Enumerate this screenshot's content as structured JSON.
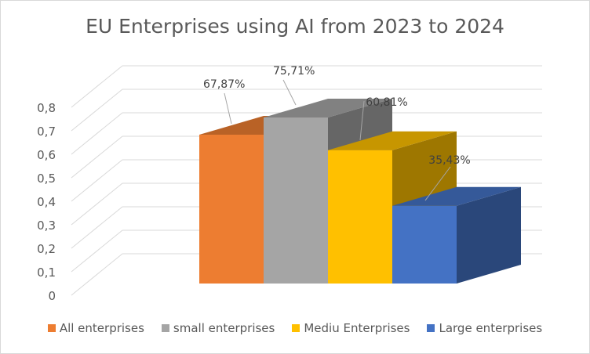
{
  "chart_data": {
    "type": "bar",
    "title": "EU Enterprises using AI from 2023 to 2024",
    "xlabel": "",
    "ylabel": "",
    "ylim": [
      0,
      0.8
    ],
    "yticks": [
      "0",
      "0,1",
      "0,2",
      "0,3",
      "0,4",
      "0,5",
      "0,6",
      "0,7",
      "0,8"
    ],
    "grid": true,
    "legend_position": "bottom",
    "series": [
      {
        "name": "All enterprises",
        "value": 0.6787,
        "label": "67,87%",
        "color": "#ed7d31"
      },
      {
        "name": "small enterprises",
        "value": 0.7571,
        "label": "75,71%",
        "color": "#a5a5a5"
      },
      {
        "name": "Mediu Enterprises",
        "value": 0.6081,
        "label": "60,81%",
        "color": "#ffc000"
      },
      {
        "name": "Large enterprises",
        "value": 0.3543,
        "label": "35,43%",
        "color": "#4472c4"
      }
    ]
  }
}
